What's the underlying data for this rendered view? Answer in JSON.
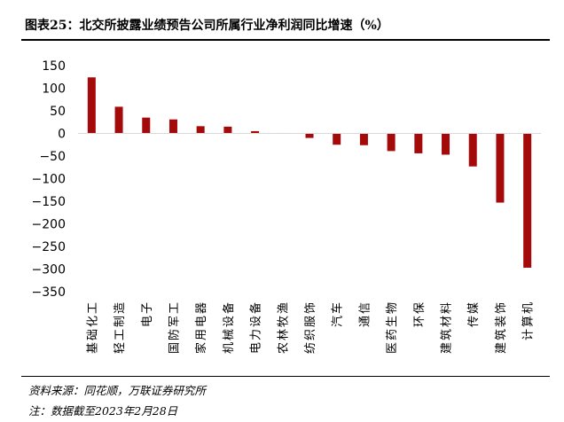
{
  "title": "图表25：北交所披露业绩预告公司所属行业净利润同比增速（%）",
  "source_note": "资料来源：同花顺，万联证券研究所",
  "date_note": "注：数据截至2023年2月28日",
  "colors": {
    "bar": "#A50A0A",
    "axis": "#D9D9D9",
    "text": "#000000"
  },
  "chart_data": {
    "type": "bar",
    "title": "图表25：北交所披露业绩预告公司所属行业净利润同比增速（%）",
    "xlabel": "",
    "ylabel": "",
    "ylim": [
      -350,
      150
    ],
    "yticks": [
      150,
      100,
      50,
      0,
      -50,
      -100,
      -150,
      -200,
      -250,
      -300,
      -350
    ],
    "ytick_labels": [
      "150",
      "100",
      "50",
      "0",
      "−50",
      "−100",
      "−150",
      "−200",
      "−250",
      "−300",
      "−350"
    ],
    "grid": false,
    "legend": "none",
    "categories": [
      "基础化工",
      "轻工制造",
      "电子",
      "国防军工",
      "家用电器",
      "机械设备",
      "电力设备",
      "农林牧渔",
      "纺织服饰",
      "汽车",
      "通信",
      "医药生物",
      "环保",
      "建筑材料",
      "传媒",
      "建筑装饰",
      "计算机"
    ],
    "values": [
      124,
      59,
      35,
      31,
      16,
      15,
      5,
      1,
      -10,
      -25,
      -26,
      -39,
      -44,
      -47,
      -73,
      -153,
      -297
    ]
  }
}
